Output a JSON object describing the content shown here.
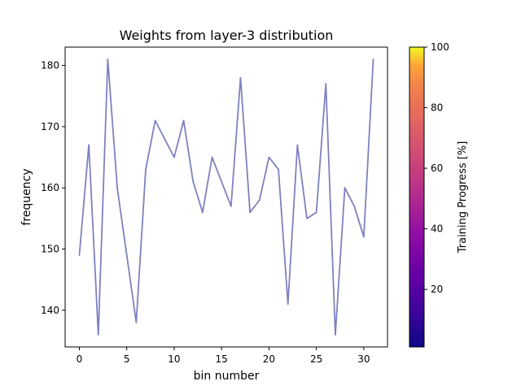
{
  "chart_data": {
    "type": "line",
    "title": "Weights from layer-3 distribution",
    "xlabel": "bin number",
    "ylabel": "frequency",
    "xlim": [
      -1.5,
      32.5
    ],
    "ylim": [
      134,
      183
    ],
    "xticks": [
      0,
      5,
      10,
      15,
      20,
      25,
      30
    ],
    "yticks": [
      140,
      150,
      160,
      170,
      180
    ],
    "grid": false,
    "series": [
      {
        "color": "#8080c0",
        "x": [
          0,
          1,
          2,
          3,
          4,
          5,
          6,
          7,
          8,
          9,
          10,
          11,
          12,
          13,
          14,
          15,
          16,
          17,
          18,
          19,
          20,
          21,
          22,
          23,
          24,
          25,
          26,
          27,
          28,
          29,
          30,
          31
        ],
        "values": [
          149,
          167,
          136,
          181,
          160,
          149,
          138,
          163,
          171,
          168,
          165,
          171,
          161,
          156,
          165,
          161,
          157,
          178,
          156,
          158,
          165,
          163,
          141,
          167,
          155,
          156,
          177,
          136,
          160,
          157,
          152,
          181
        ]
      }
    ],
    "colorbar": {
      "label": "Training Progress [%]",
      "colormap": "plasma",
      "range": [
        1,
        100
      ],
      "ticks": [
        20,
        40,
        60,
        80,
        100
      ]
    }
  }
}
